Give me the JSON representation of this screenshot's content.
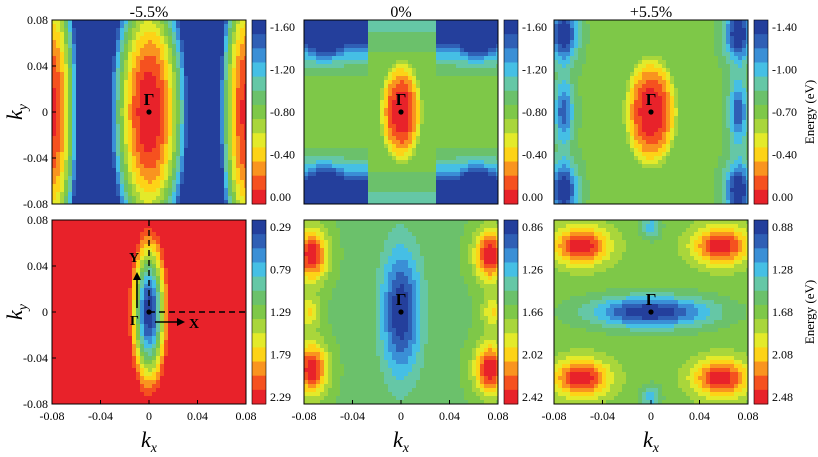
{
  "figure": {
    "panel_titles": [
      "-5.5%",
      "0%",
      "+5.5%"
    ],
    "ylabel": "k",
    "ylabel_sub": "y",
    "xlabel": "k",
    "xlabel_sub": "x",
    "colorbar_label": "Energy (eV)",
    "gamma_label": "Γ",
    "x_label": "X",
    "y_label": "Y"
  },
  "chart_data": [
    {
      "type": "heatmap",
      "row": "valence",
      "strain": "-5.5%",
      "title": "-5.5%",
      "xlim": [
        -0.08,
        0.08
      ],
      "ylim": [
        -0.08,
        0.08
      ],
      "y_ticks": [
        "0.08",
        "0.04",
        "0",
        "-0.04",
        "-0.08"
      ],
      "x_ticks": [],
      "colorbar_ticks": [
        "-1.60",
        "-1.20",
        "-0.80",
        "-0.40",
        "0.00"
      ],
      "colorbar_range": [
        -1.6,
        0.0
      ],
      "colorbar_label": "",
      "gamma_point": [
        0,
        0
      ],
      "annotations": [
        "Γ"
      ]
    },
    {
      "type": "heatmap",
      "row": "valence",
      "strain": "0%",
      "title": "0%",
      "xlim": [
        -0.08,
        0.08
      ],
      "ylim": [
        -0.08,
        0.08
      ],
      "y_ticks": [],
      "x_ticks": [],
      "colorbar_ticks": [
        "-1.60",
        "-1.20",
        "-0.80",
        "-0.40",
        "0.00"
      ],
      "colorbar_range": [
        -1.6,
        0.0
      ],
      "colorbar_label": "",
      "gamma_point": [
        0,
        0
      ],
      "annotations": [
        "Γ"
      ]
    },
    {
      "type": "heatmap",
      "row": "valence",
      "strain": "+5.5%",
      "title": "+5.5%",
      "xlim": [
        -0.08,
        0.08
      ],
      "ylim": [
        -0.08,
        0.08
      ],
      "y_ticks": [],
      "x_ticks": [],
      "colorbar_ticks": [
        "-1.40",
        "-1.00",
        "-0.70",
        "-0.40",
        "0.00"
      ],
      "colorbar_range": [
        -1.4,
        0.0
      ],
      "colorbar_label": "Energy (eV)",
      "gamma_point": [
        0,
        0
      ],
      "annotations": [
        "Γ"
      ]
    },
    {
      "type": "heatmap",
      "row": "conduction",
      "strain": "-5.5%",
      "title": "",
      "xlim": [
        -0.08,
        0.08
      ],
      "ylim": [
        -0.08,
        0.08
      ],
      "y_ticks": [
        "0.08",
        "0.04",
        "0",
        "-0.04",
        "-0.08"
      ],
      "x_ticks": [
        "-0.08",
        "-0.04",
        "0",
        "0.04",
        "0.08"
      ],
      "colorbar_ticks": [
        "0.29",
        "0.79",
        "1.29",
        "1.79",
        "2.29"
      ],
      "colorbar_range": [
        0.29,
        2.29
      ],
      "colorbar_label": "",
      "gamma_point": [
        0,
        0
      ],
      "annotations": [
        "Γ",
        "X",
        "Y"
      ]
    },
    {
      "type": "heatmap",
      "row": "conduction",
      "strain": "0%",
      "title": "",
      "xlim": [
        -0.08,
        0.08
      ],
      "ylim": [
        -0.08,
        0.08
      ],
      "y_ticks": [],
      "x_ticks": [
        "-0.08",
        "-0.04",
        "0",
        "0.04",
        "0.08"
      ],
      "colorbar_ticks": [
        "0.86",
        "1.26",
        "1.66",
        "2.02",
        "2.42"
      ],
      "colorbar_range": [
        0.86,
        2.42
      ],
      "colorbar_label": "",
      "gamma_point": [
        0,
        0
      ],
      "annotations": [
        "Γ"
      ]
    },
    {
      "type": "heatmap",
      "row": "conduction",
      "strain": "+5.5%",
      "title": "",
      "xlim": [
        -0.08,
        0.08
      ],
      "ylim": [
        -0.08,
        0.08
      ],
      "y_ticks": [],
      "x_ticks": [
        "-0.08",
        "-0.04",
        "0",
        "0.04",
        "0.08"
      ],
      "colorbar_ticks": [
        "0.88",
        "1.28",
        "1.68",
        "2.08",
        "2.48"
      ],
      "colorbar_range": [
        0.88,
        2.48
      ],
      "colorbar_label": "Energy (eV)",
      "gamma_point": [
        0,
        0
      ],
      "annotations": [
        "Γ"
      ]
    }
  ],
  "colormap": [
    "#e8222a",
    "#f5511f",
    "#f9941f",
    "#fdd317",
    "#e3ea2a",
    "#a9d63b",
    "#7ec848",
    "#6bc16b",
    "#65c7a6",
    "#45bfe5",
    "#3a8fd6",
    "#2f5fb5",
    "#243f9c"
  ]
}
